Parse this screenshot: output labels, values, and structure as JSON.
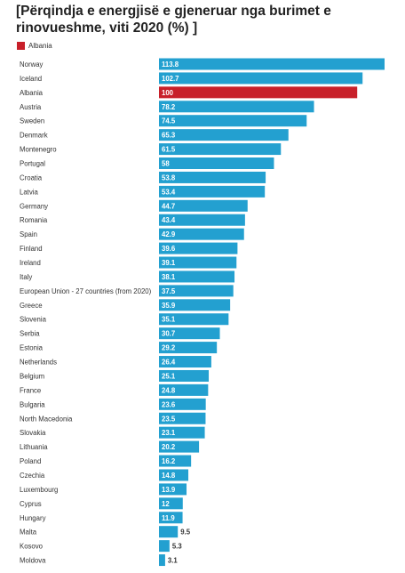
{
  "chart_data": {
    "type": "bar",
    "orientation": "horizontal",
    "title": "[Përqindja e energjisë e gjeneruar nga burimet e rinovueshme, viti 2020 (%) ]",
    "legend": [
      {
        "label": "Albania",
        "color": "#c8202a"
      }
    ],
    "legend_position": "top-left",
    "bar_color": "#23a0d0",
    "highlight_color": "#c8202a",
    "highlight_category": "Albania",
    "grid": false,
    "xlim": [
      0,
      113.8
    ],
    "categories": [
      "Norway",
      "Iceland",
      "Albania",
      "Austria",
      "Sweden",
      "Denmark",
      "Montenegro",
      "Portugal",
      "Croatia",
      "Latvia",
      "Germany",
      "Romania",
      "Spain",
      "Finland",
      "Ireland",
      "Italy",
      "European Union - 27 countries (from 2020)",
      "Greece",
      "Slovenia",
      "Serbia",
      "Estonia",
      "Netherlands",
      "Belgium",
      "France",
      "Bulgaria",
      "North Macedonia",
      "Slovakia",
      "Lithuania",
      "Poland",
      "Czechia",
      "Luxembourg",
      "Cyprus",
      "Hungary",
      "Malta",
      "Kosovo",
      "Moldova"
    ],
    "values": [
      113.8,
      102.7,
      100,
      78.2,
      74.5,
      65.3,
      61.5,
      58,
      53.8,
      53.4,
      44.7,
      43.4,
      42.9,
      39.6,
      39.1,
      38.1,
      37.5,
      35.9,
      35.1,
      30.7,
      29.2,
      26.4,
      25.1,
      24.8,
      23.6,
      23.5,
      23.1,
      20.2,
      16.2,
      14.8,
      13.9,
      12,
      11.9,
      9.5,
      5.3,
      3.1
    ],
    "value_labels": [
      "113.8",
      "102.7",
      "100",
      "78.2",
      "74.5",
      "65.3",
      "61.5",
      "58",
      "53.8",
      "53.4",
      "44.7",
      "43.4",
      "42.9",
      "39.6",
      "39.1",
      "38.1",
      "37.5",
      "35.9",
      "35.1",
      "30.7",
      "29.2",
      "26.4",
      "25.1",
      "24.8",
      "23.6",
      "23.5",
      "23.1",
      "20.2",
      "16.2",
      "14.8",
      "13.9",
      "12",
      "11.9",
      "9.5",
      "5.3",
      "3.1"
    ]
  }
}
